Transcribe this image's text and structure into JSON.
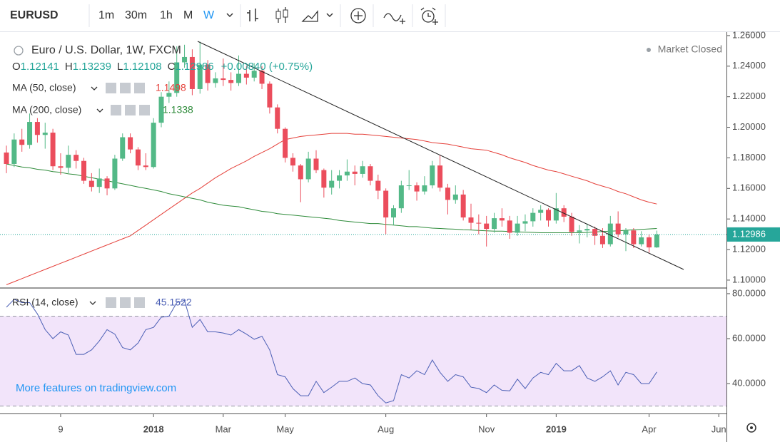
{
  "chart_data": {
    "type": "candlestick",
    "symbol": "EURUSD",
    "intervals": [
      "1m",
      "30m",
      "1h",
      "M",
      "W"
    ],
    "title": "Euro / U.S. Dollar, 1W, FXCM",
    "ohlc_labels": [
      "O",
      "H",
      "L",
      "C"
    ],
    "change_label": "+0.00840 (+0.75%)",
    "market_status": "Market Closed",
    "watermark": "More features on tradingview.com",
    "categories": [
      null,
      null,
      null,
      null,
      null,
      null,
      null,
      "9",
      null,
      null,
      null,
      null,
      null,
      null,
      null,
      null,
      null,
      null,
      null,
      "2018",
      null,
      null,
      null,
      null,
      null,
      null,
      null,
      null,
      "Mar",
      null,
      null,
      null,
      null,
      null,
      null,
      null,
      "May",
      null,
      null,
      null,
      null,
      null,
      null,
      null,
      null,
      null,
      null,
      null,
      null,
      "Aug",
      null,
      null,
      null,
      null,
      null,
      null,
      null,
      null,
      null,
      null,
      null,
      null,
      "Nov",
      null,
      null,
      null,
      null,
      null,
      null,
      null,
      null,
      "2019",
      null,
      null,
      null,
      null,
      null,
      null,
      null,
      null,
      null,
      null,
      null,
      "Apr",
      null,
      null,
      null,
      null,
      null,
      null,
      null,
      null,
      "Jun"
    ],
    "open": [
      1.1835,
      1.176,
      1.192,
      1.1885,
      1.2035,
      1.195,
      1.1965,
      1.1745,
      1.1735,
      1.182,
      1.178,
      1.165,
      1.161,
      1.1665,
      1.16,
      1.1795,
      1.1935,
      1.1855,
      1.175,
      1.174,
      1.203,
      1.22,
      1.2225,
      1.2425,
      1.246,
      1.225,
      1.241,
      1.229,
      1.232,
      1.231,
      1.229,
      1.235,
      1.2325,
      1.237,
      1.2285,
      1.213,
      1.199,
      1.18,
      1.175,
      1.166,
      1.1795,
      1.172,
      1.1605,
      1.165,
      1.1685,
      1.171,
      1.1695,
      1.1745,
      1.165,
      1.1585,
      1.141,
      1.147,
      1.162,
      1.162,
      1.158,
      1.162,
      1.175,
      1.1605,
      1.1525,
      1.156,
      1.141,
      1.1375,
      1.137,
      1.1335,
      1.1405,
      1.139,
      1.131,
      1.137,
      1.1385,
      1.144,
      1.146,
      1.139,
      1.147,
      1.1415,
      1.1315,
      1.1325,
      1.1335,
      1.129,
      1.1235,
      1.137,
      1.13,
      1.1325,
      1.1235,
      1.128,
      1.12141,
      null,
      null,
      null,
      null,
      null,
      null,
      null,
      null
    ],
    "high": [
      1.188,
      1.196,
      1.199,
      1.209,
      1.206,
      1.203,
      1.199,
      1.183,
      1.188,
      1.185,
      1.18,
      1.17,
      1.173,
      1.168,
      1.182,
      1.196,
      1.196,
      1.187,
      1.183,
      1.206,
      1.223,
      1.23,
      1.253,
      1.254,
      1.251,
      1.256,
      1.244,
      1.236,
      1.245,
      1.236,
      1.247,
      1.24,
      1.242,
      1.24,
      1.23,
      1.215,
      1.2,
      1.183,
      1.176,
      1.184,
      1.185,
      1.173,
      1.172,
      1.172,
      1.179,
      1.175,
      1.178,
      1.176,
      1.169,
      1.16,
      1.149,
      1.165,
      1.172,
      1.164,
      1.168,
      1.178,
      1.182,
      1.163,
      1.162,
      1.159,
      1.15,
      1.143,
      1.142,
      1.144,
      1.147,
      1.142,
      1.142,
      1.143,
      1.147,
      1.149,
      1.147,
      1.157,
      1.149,
      1.144,
      1.136,
      1.137,
      1.135,
      1.134,
      1.142,
      1.145,
      1.134,
      1.134,
      1.132,
      1.13,
      1.13239,
      null,
      null,
      null,
      null,
      null,
      null,
      null,
      null
    ],
    "low": [
      1.17,
      1.174,
      1.184,
      1.186,
      1.19,
      1.186,
      1.172,
      1.169,
      1.17,
      1.173,
      1.163,
      1.158,
      1.157,
      1.1555,
      1.159,
      1.178,
      1.183,
      1.172,
      1.172,
      1.173,
      1.2,
      1.216,
      1.22,
      1.239,
      1.221,
      1.222,
      1.224,
      1.226,
      1.227,
      1.224,
      1.227,
      1.228,
      1.23,
      1.225,
      1.209,
      1.196,
      1.177,
      1.171,
      1.151,
      1.164,
      1.17,
      1.154,
      1.156,
      1.16,
      1.165,
      1.162,
      1.167,
      1.162,
      1.153,
      1.13,
      1.136,
      1.144,
      1.159,
      1.152,
      1.156,
      1.16,
      1.158,
      1.143,
      1.15,
      1.139,
      1.133,
      1.13,
      1.122,
      1.131,
      1.135,
      1.127,
      1.129,
      1.132,
      1.135,
      1.139,
      1.135,
      1.137,
      1.138,
      1.129,
      1.124,
      1.128,
      1.123,
      1.121,
      1.122,
      1.128,
      1.119,
      1.121,
      1.122,
      1.118,
      1.12108,
      null,
      null,
      null,
      null,
      null,
      null,
      null,
      null
    ],
    "close": [
      1.176,
      1.192,
      1.1885,
      1.2035,
      1.195,
      1.1965,
      1.1745,
      1.1735,
      1.182,
      1.178,
      1.165,
      1.161,
      1.1665,
      1.16,
      1.1795,
      1.1935,
      1.1855,
      1.175,
      1.174,
      1.203,
      1.22,
      1.2225,
      1.2425,
      1.246,
      1.225,
      1.241,
      1.229,
      1.232,
      1.231,
      1.229,
      1.235,
      1.2325,
      1.237,
      1.2285,
      1.213,
      1.199,
      1.18,
      1.175,
      1.166,
      1.1795,
      1.172,
      1.1605,
      1.165,
      1.1685,
      1.171,
      1.1695,
      1.1745,
      1.165,
      1.1585,
      1.141,
      1.147,
      1.162,
      1.162,
      1.158,
      1.162,
      1.175,
      1.1605,
      1.1525,
      1.156,
      1.141,
      1.1375,
      1.137,
      1.1335,
      1.1405,
      1.139,
      1.131,
      1.137,
      1.1385,
      1.144,
      1.146,
      1.139,
      1.147,
      1.1415,
      1.1315,
      1.1325,
      1.1335,
      1.129,
      1.1235,
      1.137,
      1.13,
      1.1325,
      1.1235,
      1.128,
      1.12141,
      1.12986,
      null,
      null,
      null,
      null,
      null,
      null,
      null,
      null
    ],
    "up_color": "#53b987",
    "down_color": "#eb4d5c",
    "last_price_color": "#26a69a",
    "ylim": [
      1.0953,
      1.2623
    ],
    "yticks": [
      {
        "value": 1.1,
        "label": "1.10000"
      },
      {
        "value": 1.12,
        "label": "1.12000"
      },
      {
        "value": 1.14,
        "label": "1.14000"
      },
      {
        "value": 1.16,
        "label": "1.16000"
      },
      {
        "value": 1.18,
        "label": "1.18000"
      },
      {
        "value": 1.2,
        "label": "1.20000"
      },
      {
        "value": 1.22,
        "label": "1.22000"
      },
      {
        "value": 1.24,
        "label": "1.24000"
      },
      {
        "value": 1.26,
        "label": "1.26000"
      }
    ],
    "series": [
      {
        "name": "MA (50, close)",
        "color": "#e5403a",
        "values": [
          1.097,
          1.099,
          1.101,
          1.103,
          1.105,
          1.107,
          1.109,
          1.111,
          1.113,
          1.115,
          1.117,
          1.119,
          1.121,
          1.123,
          1.125,
          1.127,
          1.129,
          1.1325,
          1.136,
          1.1395,
          1.143,
          1.1465,
          1.15,
          1.1535,
          1.157,
          1.16,
          1.1635,
          1.167,
          1.17,
          1.173,
          1.1755,
          1.178,
          1.181,
          1.1835,
          1.186,
          1.189,
          1.192,
          1.193,
          1.194,
          1.1945,
          1.195,
          1.1955,
          1.196,
          1.196,
          1.196,
          1.1955,
          1.1955,
          1.195,
          1.1945,
          1.194,
          1.1935,
          1.193,
          1.1925,
          1.192,
          1.191,
          1.19,
          1.1895,
          1.189,
          1.188,
          1.187,
          1.186,
          1.1855,
          1.185,
          1.1835,
          1.182,
          1.18,
          1.1785,
          1.177,
          1.175,
          1.1735,
          1.172,
          1.171,
          1.1695,
          1.168,
          1.1665,
          1.165,
          1.163,
          1.1615,
          1.16,
          1.158,
          1.1565,
          1.1545,
          1.1525,
          1.151,
          1.1498,
          null,
          null,
          null,
          null,
          null,
          null,
          null,
          null
        ]
      },
      {
        "name": "MA (200, close)",
        "color": "#2e8b3a",
        "values": [
          1.176,
          1.175,
          1.174,
          1.1735,
          1.1725,
          1.172,
          1.171,
          1.1705,
          1.1695,
          1.169,
          1.168,
          1.167,
          1.166,
          1.165,
          1.164,
          1.163,
          1.162,
          1.161,
          1.16,
          1.159,
          1.158,
          1.1565,
          1.1555,
          1.1545,
          1.1535,
          1.1525,
          1.151,
          1.15,
          1.149,
          1.1485,
          1.148,
          1.147,
          1.146,
          1.145,
          1.1445,
          1.1435,
          1.143,
          1.1425,
          1.142,
          1.1415,
          1.141,
          1.1405,
          1.14,
          1.139,
          1.1385,
          1.138,
          1.1375,
          1.137,
          1.137,
          1.1365,
          1.136,
          1.1355,
          1.135,
          1.135,
          1.1345,
          1.134,
          1.1338,
          1.1335,
          1.1333,
          1.133,
          1.1328,
          1.1325,
          1.1323,
          1.132,
          1.132,
          1.1318,
          1.1316,
          1.1314,
          1.1312,
          1.131,
          1.131,
          1.131,
          1.131,
          1.131,
          1.131,
          1.1312,
          1.1315,
          1.1318,
          1.132,
          1.1323,
          1.1326,
          1.1329,
          1.1332,
          1.1335,
          1.1338,
          null,
          null,
          null,
          null,
          null,
          null,
          null,
          null
        ]
      }
    ],
    "rsi": {
      "name": "RSI (14, close)",
      "color": "#4b5fb5",
      "band_color": "#f2e4fa",
      "values": [
        74,
        77.5,
        76,
        76,
        71,
        64,
        60,
        63,
        61.6,
        53,
        53,
        55,
        59,
        64,
        62,
        56,
        55,
        58,
        64,
        65,
        69.5,
        70,
        76,
        77,
        65,
        68.5,
        63,
        63,
        62.5,
        61.6,
        64,
        62,
        59.7,
        61,
        55,
        44,
        43,
        37.8,
        34.6,
        34.6,
        41,
        36,
        38.4,
        41,
        41,
        42.5,
        40,
        39.4,
        34.6,
        31.4,
        32.4,
        44,
        42.5,
        45.7,
        44,
        50.5,
        45,
        41,
        44,
        43,
        38.4,
        37.8,
        36,
        39.4,
        37,
        36.8,
        42,
        37.8,
        42.5,
        45,
        44,
        49,
        45.7,
        45.7,
        48,
        42.5,
        41,
        43,
        45.7,
        39.4,
        45,
        44,
        40,
        40,
        45.1522,
        null,
        null,
        null,
        null,
        null,
        null,
        null,
        null
      ],
      "ylim": [
        26.7,
        82.2
      ],
      "yticks": [
        {
          "value": 40,
          "label": "40.0000"
        },
        {
          "value": 60,
          "label": "60.0000"
        },
        {
          "value": 80,
          "label": "80.0000"
        }
      ],
      "bands": [
        30,
        70
      ]
    }
  }
}
